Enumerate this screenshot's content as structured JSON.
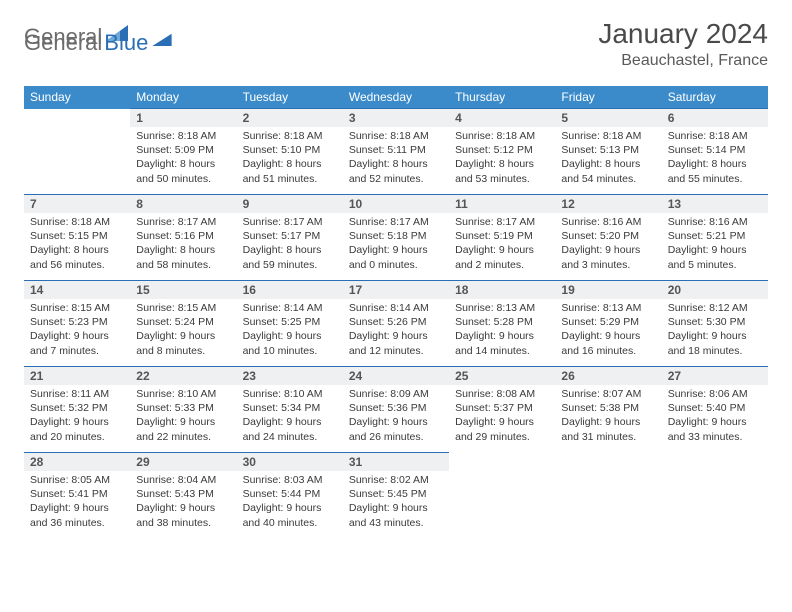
{
  "brand": {
    "part1": "General",
    "part2": "Blue"
  },
  "title": "January 2024",
  "location": "Beauchastel, France",
  "colors": {
    "header_bg": "#3b8bca",
    "header_text": "#ffffff",
    "daynum_bg": "#eef0f2",
    "border": "#2a6fb5",
    "brand_gray": "#6b6b6b",
    "brand_blue": "#2a6fb5"
  },
  "weekdays": [
    "Sunday",
    "Monday",
    "Tuesday",
    "Wednesday",
    "Thursday",
    "Friday",
    "Saturday"
  ],
  "weeks": [
    [
      null,
      {
        "n": "1",
        "sr": "8:18 AM",
        "ss": "5:09 PM",
        "dl": "8 hours and 50 minutes."
      },
      {
        "n": "2",
        "sr": "8:18 AM",
        "ss": "5:10 PM",
        "dl": "8 hours and 51 minutes."
      },
      {
        "n": "3",
        "sr": "8:18 AM",
        "ss": "5:11 PM",
        "dl": "8 hours and 52 minutes."
      },
      {
        "n": "4",
        "sr": "8:18 AM",
        "ss": "5:12 PM",
        "dl": "8 hours and 53 minutes."
      },
      {
        "n": "5",
        "sr": "8:18 AM",
        "ss": "5:13 PM",
        "dl": "8 hours and 54 minutes."
      },
      {
        "n": "6",
        "sr": "8:18 AM",
        "ss": "5:14 PM",
        "dl": "8 hours and 55 minutes."
      }
    ],
    [
      {
        "n": "7",
        "sr": "8:18 AM",
        "ss": "5:15 PM",
        "dl": "8 hours and 56 minutes."
      },
      {
        "n": "8",
        "sr": "8:17 AM",
        "ss": "5:16 PM",
        "dl": "8 hours and 58 minutes."
      },
      {
        "n": "9",
        "sr": "8:17 AM",
        "ss": "5:17 PM",
        "dl": "8 hours and 59 minutes."
      },
      {
        "n": "10",
        "sr": "8:17 AM",
        "ss": "5:18 PM",
        "dl": "9 hours and 0 minutes."
      },
      {
        "n": "11",
        "sr": "8:17 AM",
        "ss": "5:19 PM",
        "dl": "9 hours and 2 minutes."
      },
      {
        "n": "12",
        "sr": "8:16 AM",
        "ss": "5:20 PM",
        "dl": "9 hours and 3 minutes."
      },
      {
        "n": "13",
        "sr": "8:16 AM",
        "ss": "5:21 PM",
        "dl": "9 hours and 5 minutes."
      }
    ],
    [
      {
        "n": "14",
        "sr": "8:15 AM",
        "ss": "5:23 PM",
        "dl": "9 hours and 7 minutes."
      },
      {
        "n": "15",
        "sr": "8:15 AM",
        "ss": "5:24 PM",
        "dl": "9 hours and 8 minutes."
      },
      {
        "n": "16",
        "sr": "8:14 AM",
        "ss": "5:25 PM",
        "dl": "9 hours and 10 minutes."
      },
      {
        "n": "17",
        "sr": "8:14 AM",
        "ss": "5:26 PM",
        "dl": "9 hours and 12 minutes."
      },
      {
        "n": "18",
        "sr": "8:13 AM",
        "ss": "5:28 PM",
        "dl": "9 hours and 14 minutes."
      },
      {
        "n": "19",
        "sr": "8:13 AM",
        "ss": "5:29 PM",
        "dl": "9 hours and 16 minutes."
      },
      {
        "n": "20",
        "sr": "8:12 AM",
        "ss": "5:30 PM",
        "dl": "9 hours and 18 minutes."
      }
    ],
    [
      {
        "n": "21",
        "sr": "8:11 AM",
        "ss": "5:32 PM",
        "dl": "9 hours and 20 minutes."
      },
      {
        "n": "22",
        "sr": "8:10 AM",
        "ss": "5:33 PM",
        "dl": "9 hours and 22 minutes."
      },
      {
        "n": "23",
        "sr": "8:10 AM",
        "ss": "5:34 PM",
        "dl": "9 hours and 24 minutes."
      },
      {
        "n": "24",
        "sr": "8:09 AM",
        "ss": "5:36 PM",
        "dl": "9 hours and 26 minutes."
      },
      {
        "n": "25",
        "sr": "8:08 AM",
        "ss": "5:37 PM",
        "dl": "9 hours and 29 minutes."
      },
      {
        "n": "26",
        "sr": "8:07 AM",
        "ss": "5:38 PM",
        "dl": "9 hours and 31 minutes."
      },
      {
        "n": "27",
        "sr": "8:06 AM",
        "ss": "5:40 PM",
        "dl": "9 hours and 33 minutes."
      }
    ],
    [
      {
        "n": "28",
        "sr": "8:05 AM",
        "ss": "5:41 PM",
        "dl": "9 hours and 36 minutes."
      },
      {
        "n": "29",
        "sr": "8:04 AM",
        "ss": "5:43 PM",
        "dl": "9 hours and 38 minutes."
      },
      {
        "n": "30",
        "sr": "8:03 AM",
        "ss": "5:44 PM",
        "dl": "9 hours and 40 minutes."
      },
      {
        "n": "31",
        "sr": "8:02 AM",
        "ss": "5:45 PM",
        "dl": "9 hours and 43 minutes."
      },
      null,
      null,
      null
    ]
  ],
  "labels": {
    "sunrise": "Sunrise: ",
    "sunset": "Sunset: ",
    "daylight": "Daylight: "
  }
}
